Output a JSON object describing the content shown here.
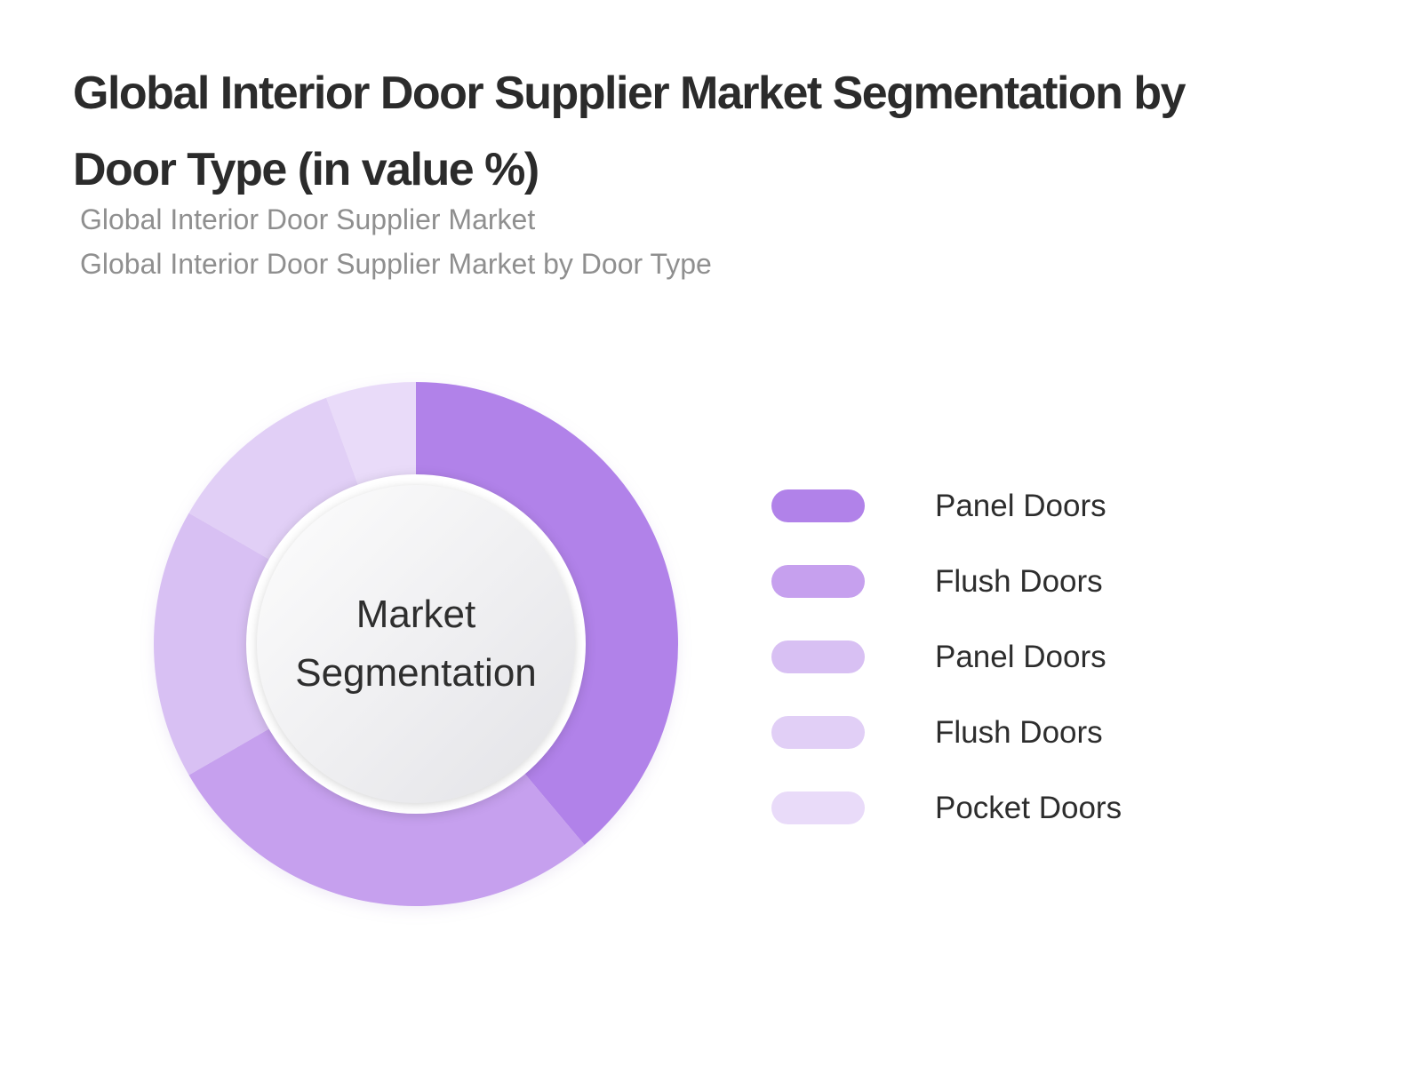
{
  "page": {
    "title_line1": "Global Interior Door Supplier Market Segmentation by",
    "title_line2": "Door Type (in value %)",
    "subtitle1": "Global Interior Door Supplier Market",
    "subtitle2": "Global Interior Door Supplier Market by Door Type"
  },
  "donut": {
    "center_label_line1": "Market",
    "center_label_line2": "Segmentation"
  },
  "legend": {
    "items": [
      {
        "label": "Panel Doors",
        "color": "#b182e9"
      },
      {
        "label": "Flush Doors",
        "color": "#c6a0ee"
      },
      {
        "label": "Panel Doors",
        "color": "#d8c0f3"
      },
      {
        "label": "Flush Doors",
        "color": "#e1cff6"
      },
      {
        "label": "Pocket Doors",
        "color": "#e9dbf9"
      }
    ]
  },
  "chart_data": {
    "type": "pie",
    "subtype": "donut",
    "title": "Global Interior Door Supplier Market Segmentation by Door Type (in value %)",
    "center_label": "Market Segmentation",
    "categories": [
      "Panel Doors",
      "Flush Doors",
      "Panel Doors",
      "Flush Doors",
      "Pocket Doors"
    ],
    "values_pct": [
      38.9,
      27.8,
      16.7,
      11.1,
      5.6
    ],
    "angles_deg": [
      140,
      100,
      60,
      40,
      20
    ],
    "colors": [
      "#b182e9",
      "#c6a0ee",
      "#d8c0f3",
      "#e1cff6",
      "#e9dbf9"
    ],
    "start_angle_deg": 0,
    "direction": "clockwise",
    "legend_position": "right",
    "data_labels": "none"
  }
}
